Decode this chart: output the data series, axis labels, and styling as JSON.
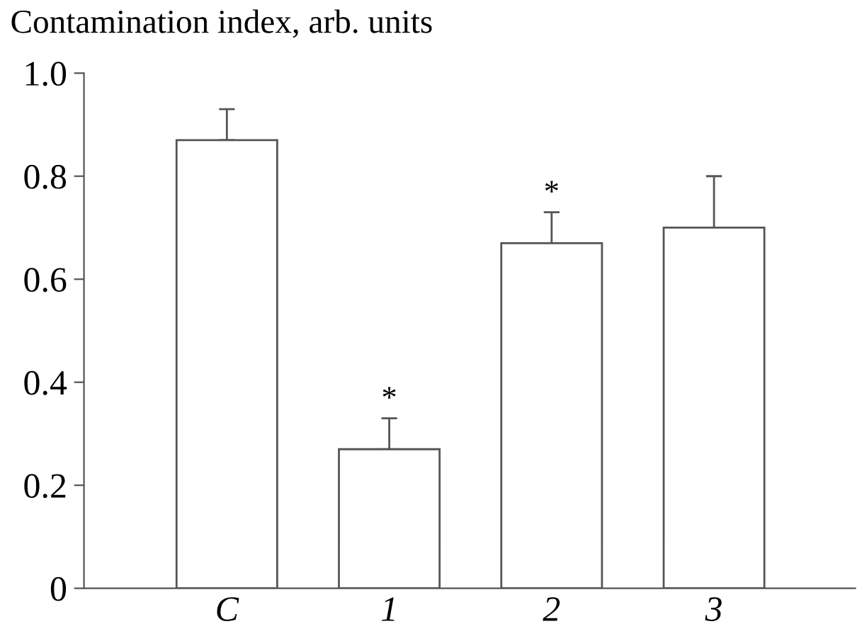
{
  "chart_data": {
    "type": "bar",
    "title": "Contamination index, arb. units",
    "categories": [
      "C",
      "1",
      "2",
      "3"
    ],
    "values": [
      0.87,
      0.27,
      0.67,
      0.7
    ],
    "errors": [
      [
        0.87,
        0.93
      ],
      [
        0.27,
        0.33
      ],
      [
        0.67,
        0.73
      ],
      [
        0.7,
        0.8
      ]
    ],
    "color": "#ffffff",
    "ylim": [
      0,
      1.0
    ],
    "yticks": [
      {
        "value": 0,
        "label": "0"
      },
      0.2,
      0.4,
      0.6,
      0.8,
      {
        "value": 1.0,
        "label": "1.0"
      }
    ],
    "annotations": [
      {
        "text": "*",
        "x": "1",
        "y": 0.33
      },
      {
        "text": "*",
        "x": "2",
        "y": 0.73
      }
    ],
    "grid": false,
    "legend": false
  }
}
